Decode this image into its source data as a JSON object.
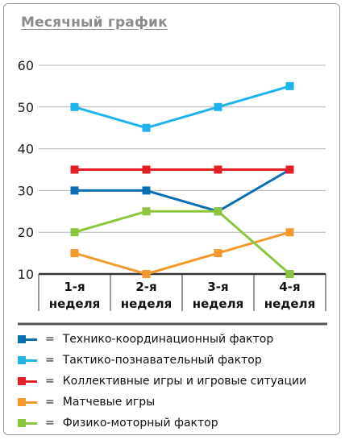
{
  "page": {
    "title": "Месячный график"
  },
  "chart_data": {
    "type": "line",
    "title": "Месячный график",
    "categories": [
      [
        "1-я",
        "неделя"
      ],
      [
        "2-я",
        "неделя"
      ],
      [
        "3-я",
        "неделя"
      ],
      [
        "4-я",
        "неделя"
      ]
    ],
    "ylim": [
      10,
      60
    ],
    "yticks": [
      10,
      20,
      30,
      40,
      50,
      60
    ],
    "grid": true,
    "legend_position": "bottom",
    "series": [
      {
        "name": "Технико-координационный фактор",
        "color": "#0a6eb4",
        "values": [
          30,
          30,
          25,
          35
        ]
      },
      {
        "name": "Тактико-познавательный фактор",
        "color": "#1eb4eb",
        "values": [
          50,
          45,
          50,
          55
        ]
      },
      {
        "name": "Коллективные игры и игровые ситуации",
        "color": "#e31e24",
        "values": [
          35,
          35,
          35,
          35
        ]
      },
      {
        "name": "Матчевые игры",
        "color": "#f39a2d",
        "values": [
          15,
          10,
          15,
          20
        ]
      },
      {
        "name": "Физико-моторный фактор",
        "color": "#8cc63f",
        "values": [
          20,
          25,
          25,
          10
        ]
      }
    ]
  },
  "legend": {
    "equals_sign": "="
  }
}
